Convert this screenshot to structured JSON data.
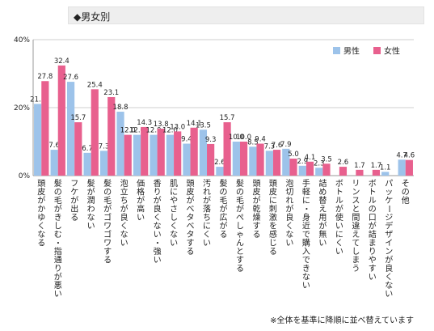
{
  "header": {
    "title": "◆男女別"
  },
  "footnote": "※全体を基準に降順に並べ替えています",
  "chart_data": {
    "type": "bar",
    "ylim": [
      0,
      40
    ],
    "y_ticks": [
      "0%",
      "20%",
      "40%"
    ],
    "grid": true,
    "legend_position": "top-right",
    "colors": {
      "male": "#9dc3ea",
      "female": "#e8608e"
    },
    "categories": [
      "頭皮がかゆくなる",
      "髪の毛がきしむ・指通りが悪い",
      "フケが出る",
      "髪が潤わない",
      "髪の毛がゴワゴワする",
      "泡立ちが良くない",
      "価格が高い",
      "香りが良くない・強い",
      "肌にやさしくない",
      "頭皮がベタベタする",
      "汚れが落ちにくい",
      "髪の毛が広がる",
      "髪の毛がぺしゃんとする",
      "頭皮が乾燥する",
      "頭皮に刺激を感じる",
      "泡切れが良くない",
      "手軽に・身近で購入できない",
      "詰め替え用が無い",
      "ボトルが使いにくい",
      "リンスと間違えてしまう",
      "ボトルの口が詰まりやすい",
      "パッケージデザインが良くない",
      "その他"
    ],
    "series": [
      {
        "name": "男性",
        "values": [
          21.1,
          7.6,
          27.6,
          6.7,
          7.3,
          18.8,
          12.0,
          12.0,
          12.0,
          9.4,
          13.5,
          2.6,
          10.0,
          8.5,
          7.3,
          7.9,
          2.9,
          2.3,
          0.0,
          0.0,
          0.0,
          1.1,
          4.7
        ]
      },
      {
        "name": "女性",
        "values": [
          27.8,
          32.4,
          15.7,
          25.4,
          23.1,
          12.0,
          14.3,
          13.8,
          13.0,
          14.1,
          9.3,
          15.7,
          10.0,
          9.4,
          7.6,
          5.0,
          4.1,
          3.5,
          2.6,
          1.7,
          1.7,
          0.0,
          4.6
        ]
      }
    ]
  }
}
